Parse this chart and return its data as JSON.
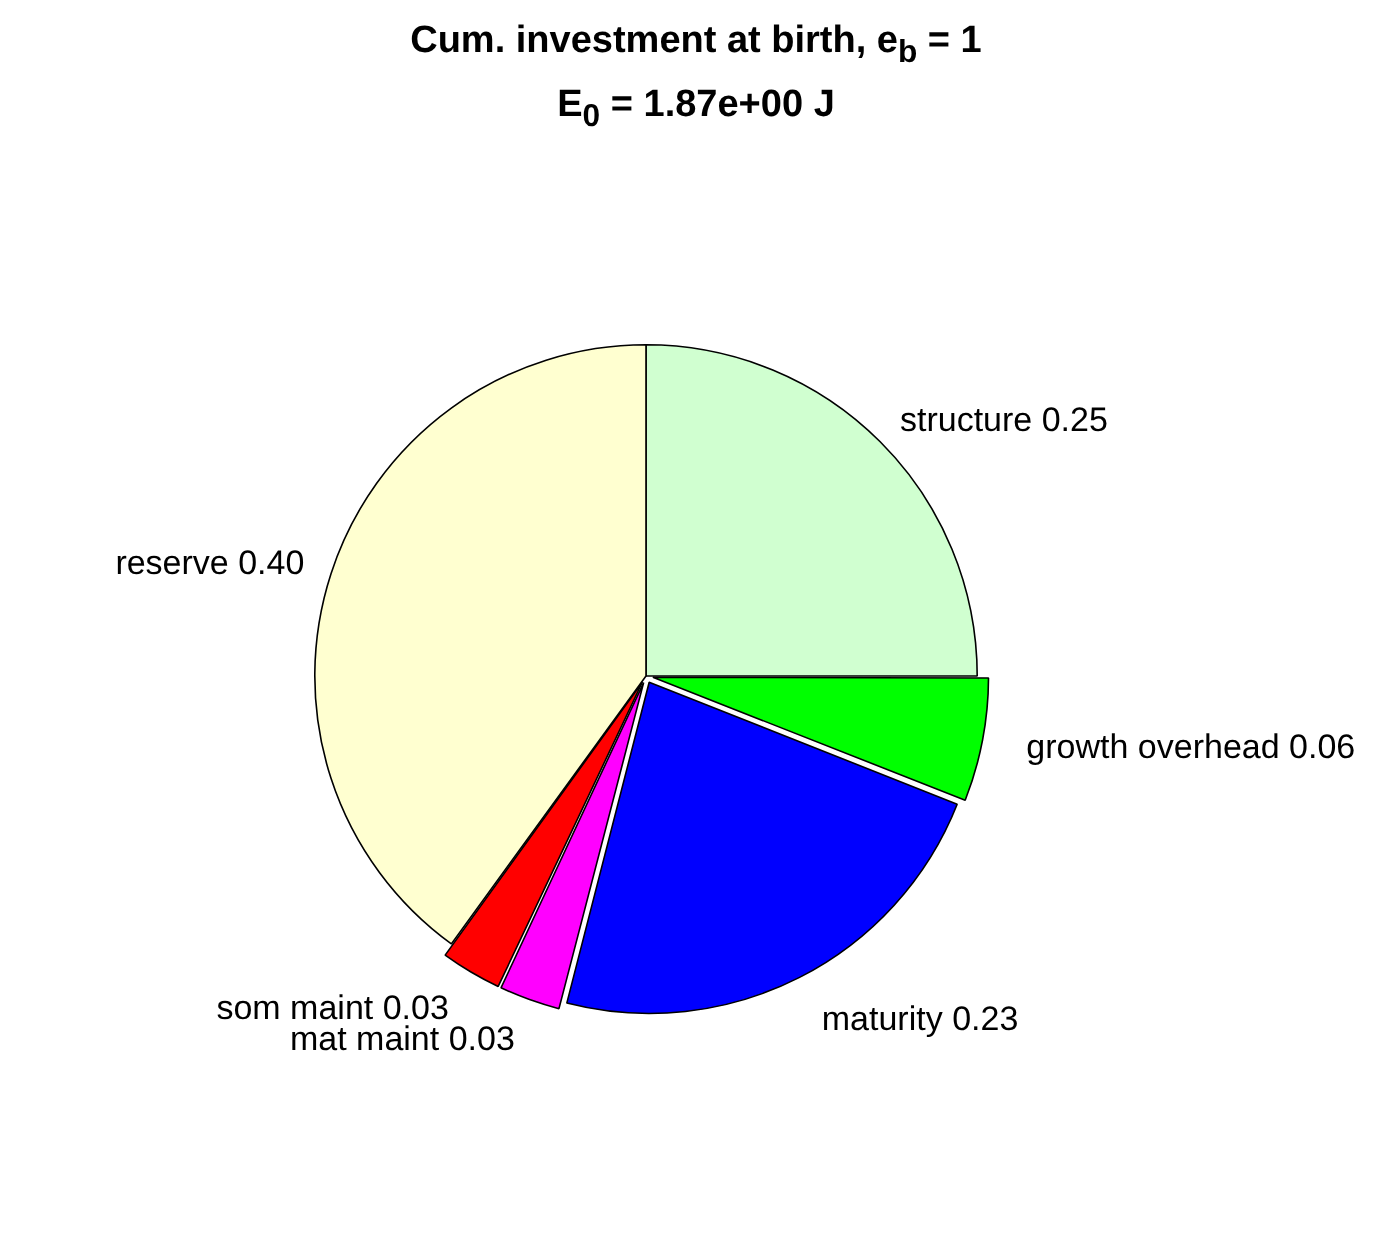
{
  "chart_data": {
    "type": "pie",
    "title": "Cum. investment at birth, e$_{b}$ = 1",
    "subtitle": "E$_{0}$ = 1.87e+00 J",
    "categories": [
      "structure",
      "growth overhead",
      "maturity",
      "mat maint",
      "som maint",
      "reserve"
    ],
    "values": [
      0.25,
      0.06,
      0.23,
      0.03,
      0.03,
      0.4
    ],
    "value_labels": [
      "0.25",
      "0.06",
      "0.23",
      "0.03",
      "0.03",
      "0.40"
    ],
    "colors": [
      "#d0ffd0",
      "#00ff00",
      "#0000ff",
      "#ff00ff",
      "#ff0000",
      "#ffffd0"
    ],
    "legend": false
  }
}
